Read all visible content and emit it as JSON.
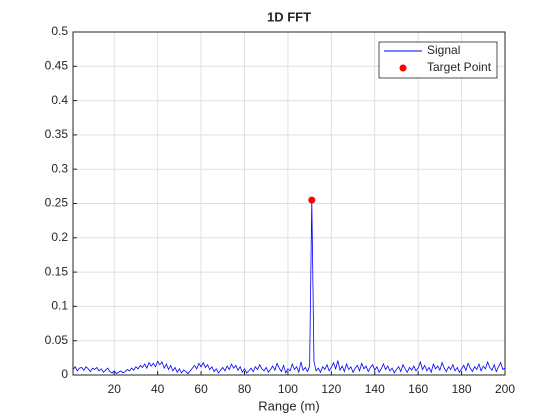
{
  "chart_data": {
    "type": "line",
    "title": "1D FFT",
    "xlabel": "Range (m)",
    "xlim": [
      1,
      200
    ],
    "xticks": [
      20,
      40,
      60,
      80,
      100,
      120,
      140,
      160,
      180,
      200
    ],
    "ylim": [
      0,
      0.5
    ],
    "yticks": [
      0,
      0.05,
      0.1,
      0.15,
      0.2,
      0.25,
      0.3,
      0.35,
      0.4,
      0.45,
      0.5
    ],
    "grid": true,
    "legend": "northeast",
    "series": [
      {
        "name": "Signal",
        "color": "#0000ff",
        "marker": "none",
        "x": [
          1,
          2,
          3,
          4,
          5,
          6,
          7,
          8,
          9,
          10,
          11,
          12,
          13,
          14,
          15,
          16,
          17,
          18,
          19,
          20,
          21,
          22,
          23,
          24,
          25,
          26,
          27,
          28,
          29,
          30,
          31,
          32,
          33,
          34,
          35,
          36,
          37,
          38,
          39,
          40,
          41,
          42,
          43,
          44,
          45,
          46,
          47,
          48,
          49,
          50,
          51,
          52,
          53,
          54,
          55,
          56,
          57,
          58,
          59,
          60,
          61,
          62,
          63,
          64,
          65,
          66,
          67,
          68,
          69,
          70,
          71,
          72,
          73,
          74,
          75,
          76,
          77,
          78,
          79,
          80,
          81,
          82,
          83,
          84,
          85,
          86,
          87,
          88,
          89,
          90,
          91,
          92,
          93,
          94,
          95,
          96,
          97,
          98,
          99,
          100,
          101,
          102,
          103,
          104,
          105,
          106,
          107,
          108,
          109,
          110,
          111,
          112,
          113,
          114,
          115,
          116,
          117,
          118,
          119,
          120,
          121,
          122,
          123,
          124,
          125,
          126,
          127,
          128,
          129,
          130,
          131,
          132,
          133,
          134,
          135,
          136,
          137,
          138,
          139,
          140,
          141,
          142,
          143,
          144,
          145,
          146,
          147,
          148,
          149,
          150,
          151,
          152,
          153,
          154,
          155,
          156,
          157,
          158,
          159,
          160,
          161,
          162,
          163,
          164,
          165,
          166,
          167,
          168,
          169,
          170,
          171,
          172,
          173,
          174,
          175,
          176,
          177,
          178,
          179,
          180,
          181,
          182,
          183,
          184,
          185,
          186,
          187,
          188,
          189,
          190,
          191,
          192,
          193,
          194,
          195,
          196,
          197,
          198,
          199,
          200
        ],
        "values": [
          0.008,
          0.012,
          0.006,
          0.01,
          0.011,
          0.007,
          0.012,
          0.009,
          0.005,
          0.01,
          0.008,
          0.011,
          0.006,
          0.009,
          0.004,
          0.007,
          0.01,
          0.005,
          0.003,
          0.006,
          0.002,
          0.004,
          0.006,
          0.003,
          0.005,
          0.008,
          0.006,
          0.01,
          0.007,
          0.012,
          0.009,
          0.014,
          0.011,
          0.016,
          0.01,
          0.018,
          0.013,
          0.017,
          0.012,
          0.02,
          0.015,
          0.019,
          0.01,
          0.016,
          0.008,
          0.014,
          0.006,
          0.011,
          0.004,
          0.009,
          0.003,
          0.007,
          0.005,
          0.002,
          0.006,
          0.01,
          0.014,
          0.009,
          0.017,
          0.012,
          0.018,
          0.011,
          0.015,
          0.008,
          0.012,
          0.005,
          0.009,
          0.003,
          0.007,
          0.011,
          0.006,
          0.013,
          0.008,
          0.016,
          0.01,
          0.014,
          0.007,
          0.012,
          0.004,
          0.009,
          0.003,
          0.006,
          0.01,
          0.005,
          0.012,
          0.008,
          0.015,
          0.009,
          0.006,
          0.011,
          0.004,
          0.008,
          0.013,
          0.007,
          0.017,
          0.01,
          0.005,
          0.014,
          0.003,
          0.009,
          0.006,
          0.016,
          0.008,
          0.012,
          0.004,
          0.019,
          0.007,
          0.011,
          0.005,
          0.013,
          0.255,
          0.02,
          0.006,
          0.01,
          0.004,
          0.012,
          0.008,
          0.015,
          0.006,
          0.011,
          0.018,
          0.009,
          0.021,
          0.007,
          0.013,
          0.005,
          0.016,
          0.008,
          0.012,
          0.004,
          0.01,
          0.014,
          0.006,
          0.017,
          0.009,
          0.013,
          0.005,
          0.011,
          0.015,
          0.007,
          0.012,
          0.004,
          0.009,
          0.016,
          0.008,
          0.013,
          0.006,
          0.01,
          0.003,
          0.008,
          0.012,
          0.005,
          0.015,
          0.009,
          0.004,
          0.011,
          0.007,
          0.013,
          0.006,
          0.01,
          0.019,
          0.008,
          0.014,
          0.006,
          0.011,
          0.004,
          0.016,
          0.009,
          0.013,
          0.007,
          0.018,
          0.01,
          0.005,
          0.012,
          0.008,
          0.015,
          0.006,
          0.011,
          0.004,
          0.009,
          0.014,
          0.007,
          0.017,
          0.01,
          0.005,
          0.012,
          0.008,
          0.016,
          0.006,
          0.013,
          0.009,
          0.019,
          0.011,
          0.007,
          0.015,
          0.005,
          0.012,
          0.018,
          0.008,
          0.01
        ]
      },
      {
        "name": "Target Point",
        "color": "#ff0000",
        "marker": "dot",
        "x": [
          111
        ],
        "values": [
          0.255
        ]
      }
    ]
  }
}
